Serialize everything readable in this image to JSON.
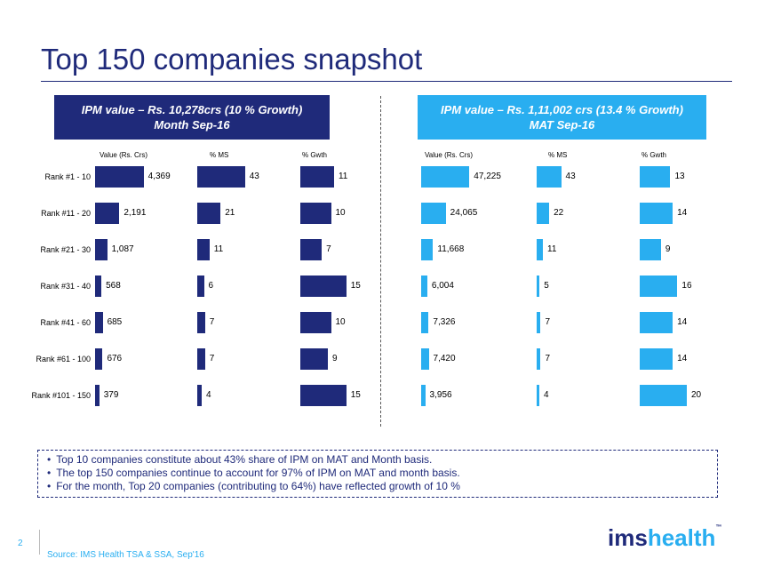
{
  "slide": {
    "title": "Top 150 companies snapshot",
    "page_number": "2",
    "source": "Source: IMS Health TSA & SSA, Sep'16",
    "logo": {
      "part1": "ims",
      "part2": "health",
      "tm": "™"
    }
  },
  "notes": [
    "Top 10 companies constitute about 43% share of IPM on MAT and Month basis.",
    "The top 150 companies continue to account for 97% of IPM on MAT and month basis.",
    "For the month, Top 20 companies (contributing to 64%) have reflected growth of 10 %"
  ],
  "colors": {
    "dark_navy": "#1f2a7a",
    "light_blue": "#29aef0"
  },
  "chart_data": [
    {
      "type": "bar",
      "panel": "left",
      "header_line1": "IPM value – Rs. 10,278crs (10 % Growth)",
      "header_line2": "Month  Sep-16",
      "categories": [
        "Rank #1 - 10",
        "Rank #11 - 20",
        "Rank #21 - 30",
        "Rank #31 - 40",
        "Rank #41 - 60",
        "Rank #61 - 100",
        "Rank #101 - 150"
      ],
      "series": [
        {
          "name": "Value (Rs. Crs)",
          "values": [
            "4,369",
            "2,191",
            "1,087",
            "568",
            "685",
            "676",
            "379"
          ],
          "numeric": [
            4369,
            2191,
            1087,
            568,
            685,
            676,
            379
          ]
        },
        {
          "name": "% MS",
          "values": [
            "43",
            "21",
            "11",
            "6",
            "7",
            "7",
            "4"
          ],
          "numeric": [
            43,
            21,
            11,
            6,
            7,
            7,
            4
          ]
        },
        {
          "name": "% Gwth",
          "values": [
            "11",
            "10",
            "7",
            "15",
            "10",
            "9",
            "15"
          ],
          "numeric": [
            11,
            10,
            7,
            15,
            10,
            9,
            15
          ]
        }
      ],
      "color": "#1f2a7a"
    },
    {
      "type": "bar",
      "panel": "right",
      "header_line1": "IPM value – Rs. 1,11,002 crs (13.4 % Growth)",
      "header_line2": "MAT  Sep-16",
      "categories": [
        "Rank #1 - 10",
        "Rank #11 - 20",
        "Rank #21 - 30",
        "Rank #31 - 40",
        "Rank #41 - 60",
        "Rank #61 - 100",
        "Rank #101 - 150"
      ],
      "series": [
        {
          "name": "Value (Rs. Crs)",
          "values": [
            "47,225",
            "24,065",
            "11,668",
            "6,004",
            "7,326",
            "7,420",
            "3,956"
          ],
          "numeric": [
            47225,
            24065,
            11668,
            6004,
            7326,
            7420,
            3956
          ]
        },
        {
          "name": "% MS",
          "values": [
            "43",
            "22",
            "11",
            "5",
            "7",
            "7",
            "4"
          ],
          "numeric": [
            43,
            22,
            11,
            5,
            7,
            7,
            4
          ]
        },
        {
          "name": "% Gwth",
          "values": [
            "13",
            "14",
            "9",
            "16",
            "14",
            "14",
            "20"
          ],
          "numeric": [
            13,
            14,
            9,
            16,
            14,
            14,
            20
          ]
        }
      ],
      "color": "#29aef0"
    }
  ]
}
